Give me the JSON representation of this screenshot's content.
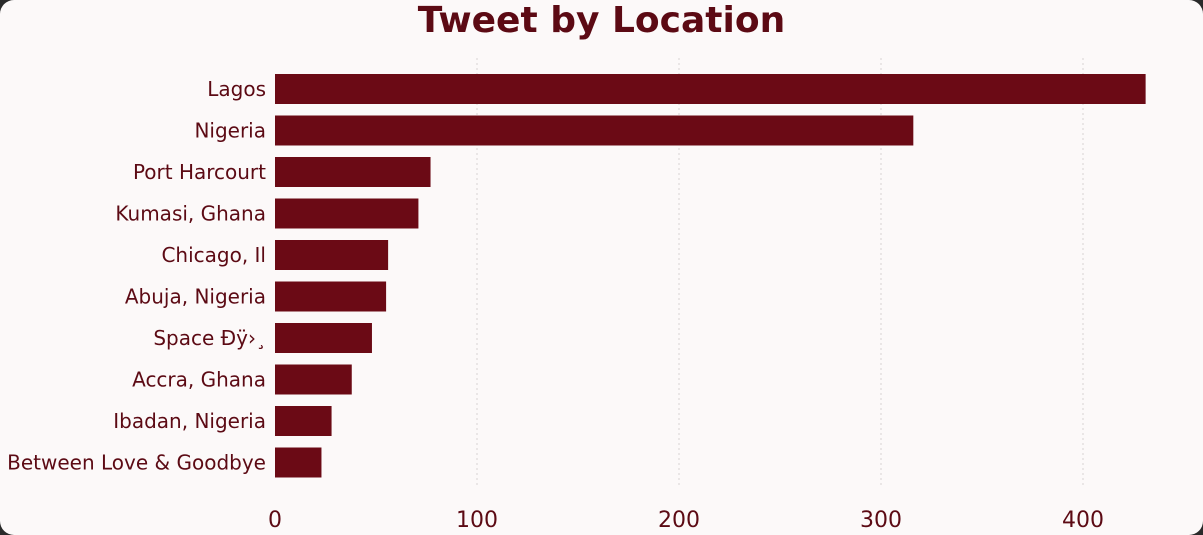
{
  "chart_data": {
    "type": "bar",
    "orientation": "horizontal",
    "title": "Tweet by Location",
    "xlabel": "",
    "ylabel": "",
    "categories": [
      "Lagos",
      "Nigeria",
      "Port Harcourt",
      "Kumasi, Ghana",
      "Chicago, Il",
      "Abuja, Nigeria",
      "Space Đÿ›¸",
      "Accra, Ghana",
      "Ibadan, Nigeria",
      "Between Love & Goodbye"
    ],
    "values": [
      431,
      316,
      77,
      71,
      56,
      55,
      48,
      38,
      28,
      23
    ],
    "xlim": [
      0,
      450
    ],
    "xticks": [
      0,
      100,
      200,
      300,
      400
    ],
    "grid": true,
    "bar_color": "#6b0a15",
    "text_color": "#5c0a14"
  }
}
